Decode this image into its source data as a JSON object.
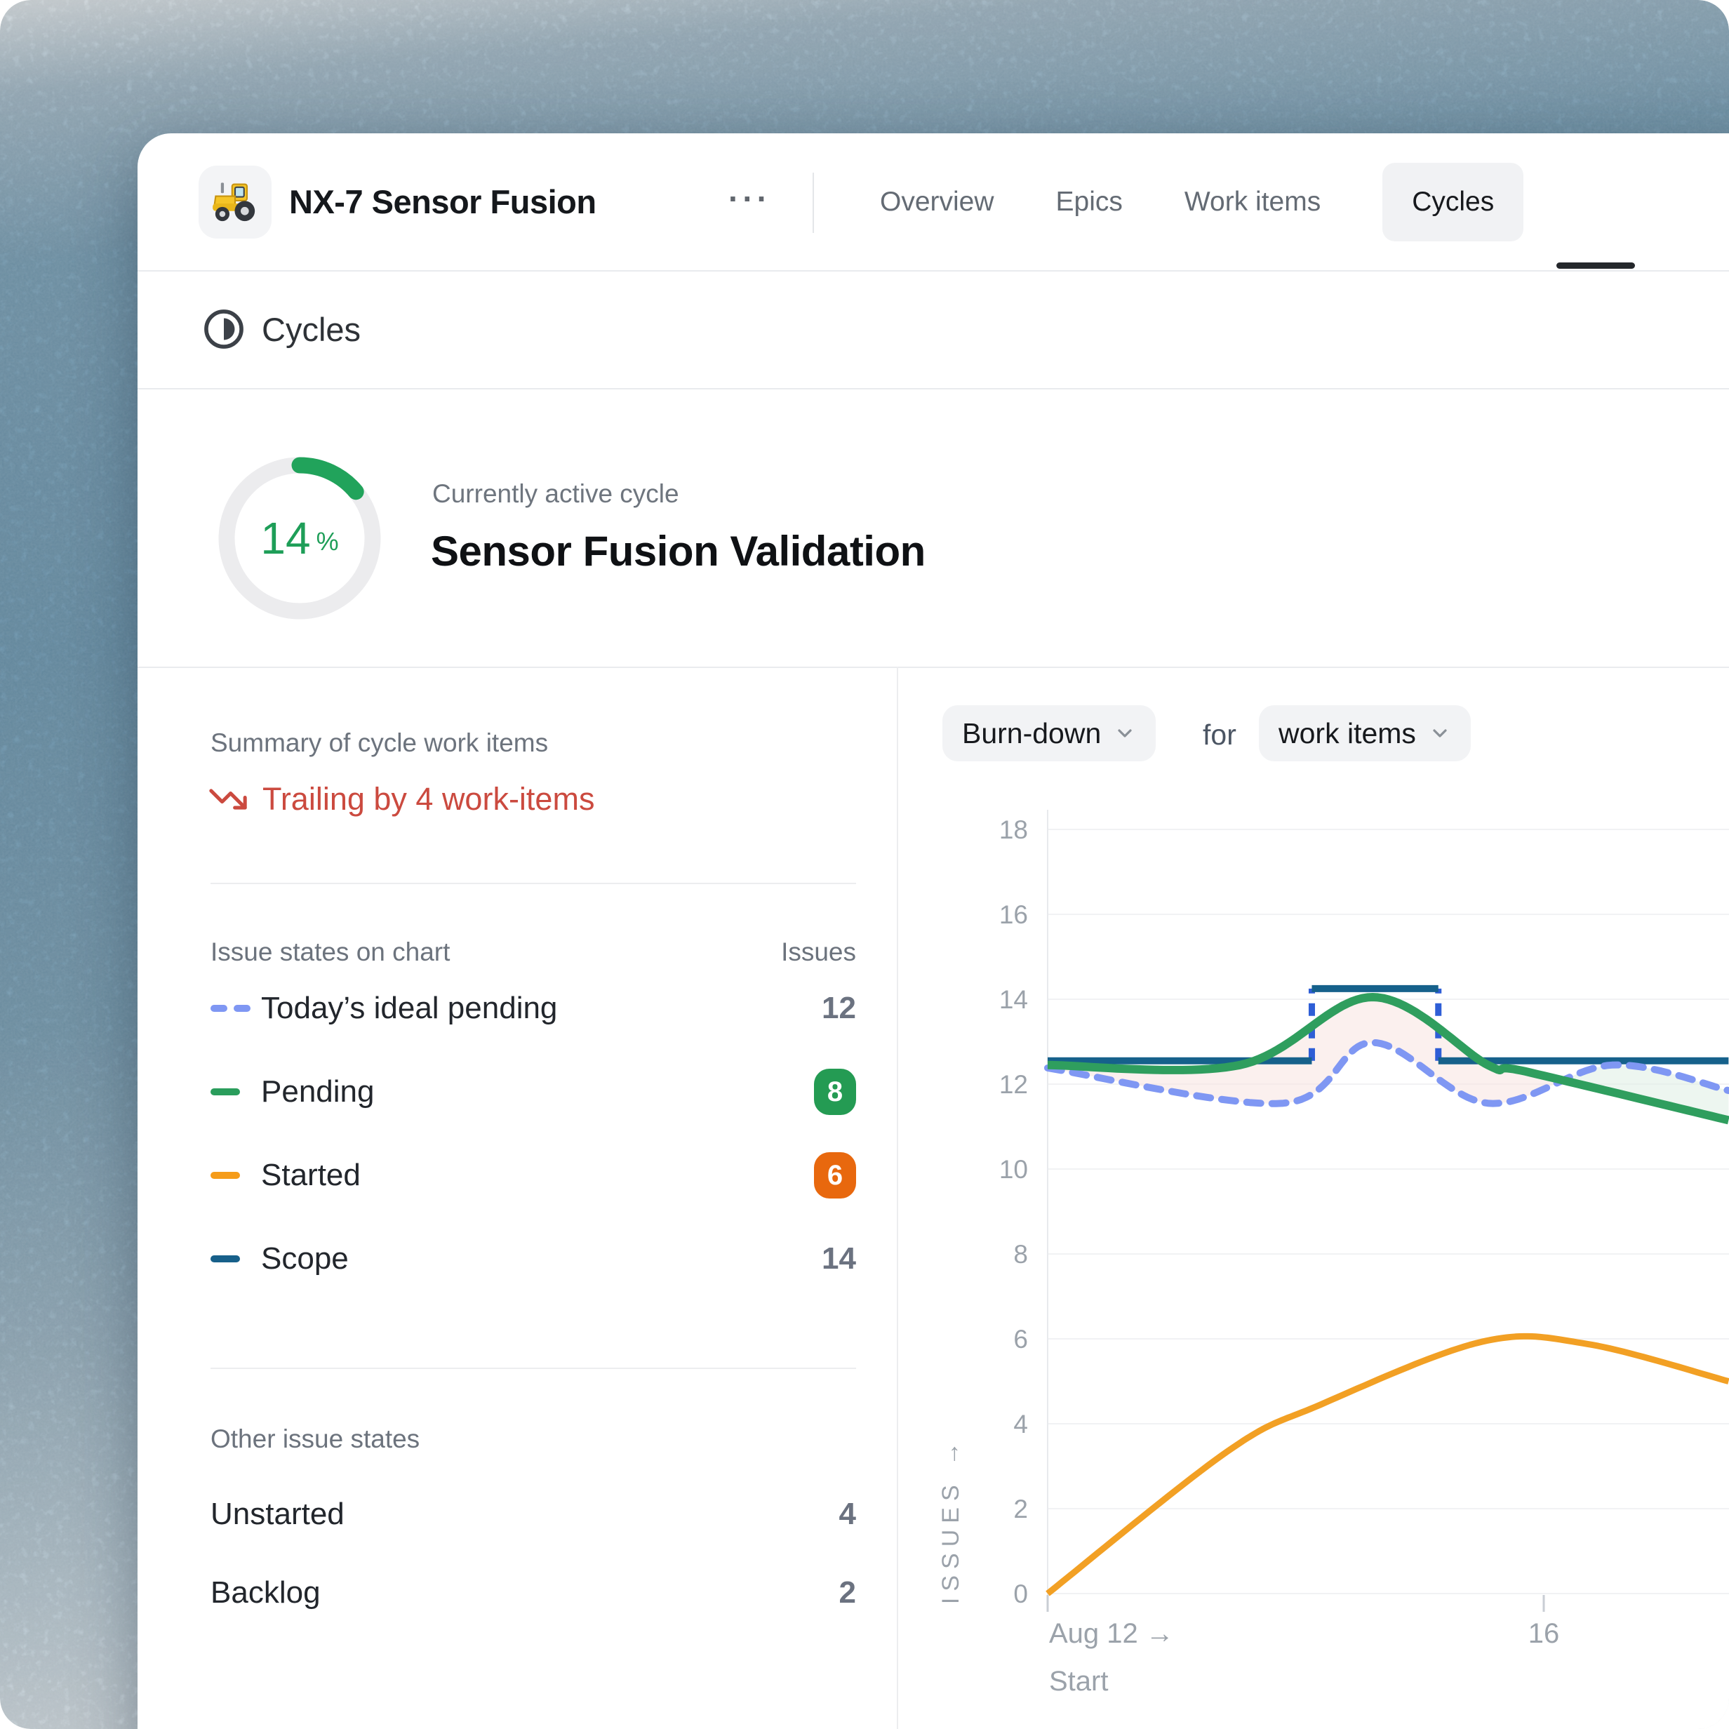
{
  "header": {
    "title": "NX-7 Sensor Fusion",
    "project_icon": "tractor",
    "more_label": "···",
    "tabs": [
      {
        "id": "overview",
        "label": "Overview",
        "active": false
      },
      {
        "id": "epics",
        "label": "Epics",
        "active": false
      },
      {
        "id": "work-items",
        "label": "Work items",
        "active": false
      },
      {
        "id": "cycles",
        "label": "Cycles",
        "active": true
      }
    ]
  },
  "section": {
    "title": "Cycles"
  },
  "hero": {
    "progress_percent": "14",
    "percent_sign": "%",
    "eyebrow": "Currently active cycle",
    "cycle_name": "Sensor Fusion Validation",
    "progress_color": "#21A35B"
  },
  "summary": {
    "heading": "Summary of cycle work items",
    "trailing_text": "Trailing by 4 work-items",
    "trailing_color": "#CB4A3F"
  },
  "legend": {
    "heading": "Issue states on chart",
    "issues_col": "Issues",
    "items": [
      {
        "label": "Today’s ideal pending",
        "value": "12",
        "swatch": "dashes",
        "swatch_color": "#7F97F3",
        "value_style": "plain"
      },
      {
        "label": "Pending",
        "value": "8",
        "swatch": "dash",
        "swatch_color": "#2A9D5C",
        "value_style": "badge",
        "badge_color": "#249B53"
      },
      {
        "label": "Started",
        "value": "6",
        "swatch": "dash",
        "swatch_color": "#F59C1A",
        "value_style": "badge",
        "badge_color": "#E8680E"
      },
      {
        "label": "Scope",
        "value": "14",
        "swatch": "dash",
        "swatch_color": "#17608A",
        "value_style": "plain"
      }
    ]
  },
  "other_states": {
    "heading": "Other issue states",
    "rows": [
      {
        "label": "Unstarted",
        "value": "4"
      },
      {
        "label": "Backlog",
        "value": "2"
      }
    ]
  },
  "controls": {
    "metric": "Burn-down",
    "for_label": "for",
    "scope": "work items"
  },
  "chart_data": {
    "type": "line",
    "title": "Burn-down for work items",
    "ylabel": "ISSUES →",
    "x_unit": "days since Aug 12",
    "x_max": 5.49,
    "ylim": [
      0,
      18
    ],
    "yticks": [
      0,
      2,
      4,
      6,
      8,
      10,
      12,
      14,
      16,
      18
    ],
    "xticks": [
      {
        "x": 0,
        "label": "Aug 12 →",
        "sublabel": "Start",
        "align": "start"
      },
      {
        "x": 4,
        "label": "16",
        "align": "middle"
      }
    ],
    "grid_color": "#F1F2F4",
    "axis_line_color": "#E8EAED",
    "tick_color": "#C9CED4",
    "axis_text_color": "#9BA2AA",
    "fill_above_color": "#F8E3E0",
    "fill_below_color": "#DEEFE3",
    "fill_opacity": 0.55,
    "series": [
      {
        "name": "Scope",
        "role": "scope",
        "color": "#16618B",
        "width": 10,
        "segments": [
          [
            [
              0,
              12.55
            ],
            [
              2.13,
              12.55
            ]
          ],
          [
            [
              2.13,
              14.25
            ],
            [
              3.15,
              14.25
            ]
          ],
          [
            [
              3.15,
              12.55
            ],
            [
              5.49,
              12.55
            ]
          ]
        ],
        "connector": {
          "color": "#2E5ED6",
          "width": 9,
          "dash": "18 14",
          "xs": [
            2.13,
            3.15
          ],
          "y_range": [
            12.55,
            14.25
          ]
        }
      },
      {
        "name": "Today’s ideal pending",
        "role": "ideal",
        "color": "#7F97F3",
        "width": 10,
        "dash": "20 16",
        "points": [
          [
            0,
            12.38
          ],
          [
            1.9,
            11.55
          ],
          [
            2.62,
            12.98
          ],
          [
            3.55,
            11.55
          ],
          [
            4.55,
            12.45
          ],
          [
            5.49,
            11.85
          ]
        ]
      },
      {
        "name": "Pending",
        "role": "pending",
        "color": "#2F9E5E",
        "width": 12,
        "points": [
          [
            0,
            12.45
          ],
          [
            1.55,
            12.45
          ],
          [
            2.62,
            14.05
          ],
          [
            3.55,
            12.45
          ],
          [
            3.85,
            12.3
          ],
          [
            5.49,
            11.15
          ]
        ]
      },
      {
        "name": "Started",
        "role": "started",
        "color": "#F2A024",
        "width": 9,
        "points": [
          [
            0,
            0
          ],
          [
            1.45,
            3.35
          ],
          [
            2.2,
            4.45
          ],
          [
            3.5,
            5.93
          ],
          [
            4.35,
            5.88
          ],
          [
            5.49,
            5.0
          ]
        ]
      }
    ]
  }
}
